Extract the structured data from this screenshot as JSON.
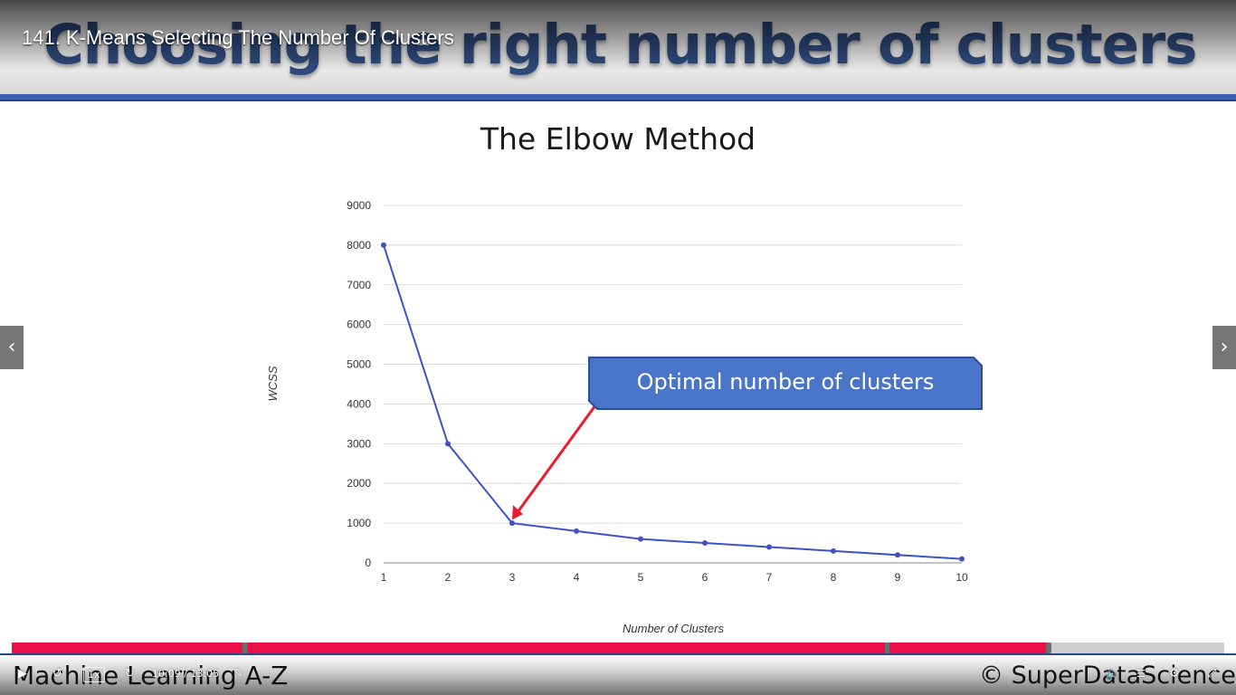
{
  "player": {
    "video_title": "141. K-Means Selecting The Number Of Clusters",
    "speed_label": "1x",
    "time_current": "10:09",
    "time_total": "13:05",
    "progress": 0.855,
    "chapter_markers": [
      0.19,
      0.72
    ],
    "controls": {
      "play_icon": "play-icon",
      "rewind_icon": "rewind-icon",
      "forward_icon": "forward-icon",
      "notes_icon": "notes-icon",
      "volume_icon": "volume-icon",
      "transcript_icon": "transcript-icon",
      "settings_icon": "gear-icon",
      "fullscreen_icon": "fullscreen-icon"
    },
    "nav": {
      "prev_icon": "chevron-left-icon",
      "next_icon": "chevron-right-icon"
    },
    "colors": {
      "progress_fill": "#ec0f47",
      "progress_track": "#cfcfcf"
    }
  },
  "slide": {
    "heading": "Choosing the right number of clusters",
    "footer_course": "Machine Learning A-Z",
    "footer_brand": "© SuperDataScience",
    "colors": {
      "heading": "#2e4a7c",
      "rule": "#3f5fb6"
    }
  },
  "chart_data": {
    "type": "line",
    "title": "The Elbow Method",
    "xlabel": "Number of Clusters",
    "ylabel": "WCSS",
    "x": [
      1,
      2,
      3,
      4,
      5,
      6,
      7,
      8,
      9,
      10
    ],
    "series": [
      {
        "values": [
          8000,
          3000,
          1000,
          800,
          600,
          500,
          400,
          300,
          200,
          100
        ]
      }
    ],
    "xlim": [
      1,
      10
    ],
    "ylim": [
      0,
      9000
    ],
    "yticks": [
      "0",
      "1000",
      "2000",
      "3000",
      "4000",
      "5000",
      "6000",
      "7000",
      "8000",
      "9000"
    ],
    "xticks": [
      "1",
      "2",
      "3",
      "4",
      "5",
      "6",
      "7",
      "8",
      "9",
      "10"
    ],
    "grid": true,
    "line_color": "#3f51c4",
    "annotation": {
      "text": "Optimal number of clusters",
      "points_to_x": 3,
      "box_color": "#4a74c8",
      "arrow_color": "#ea1a2c"
    }
  }
}
